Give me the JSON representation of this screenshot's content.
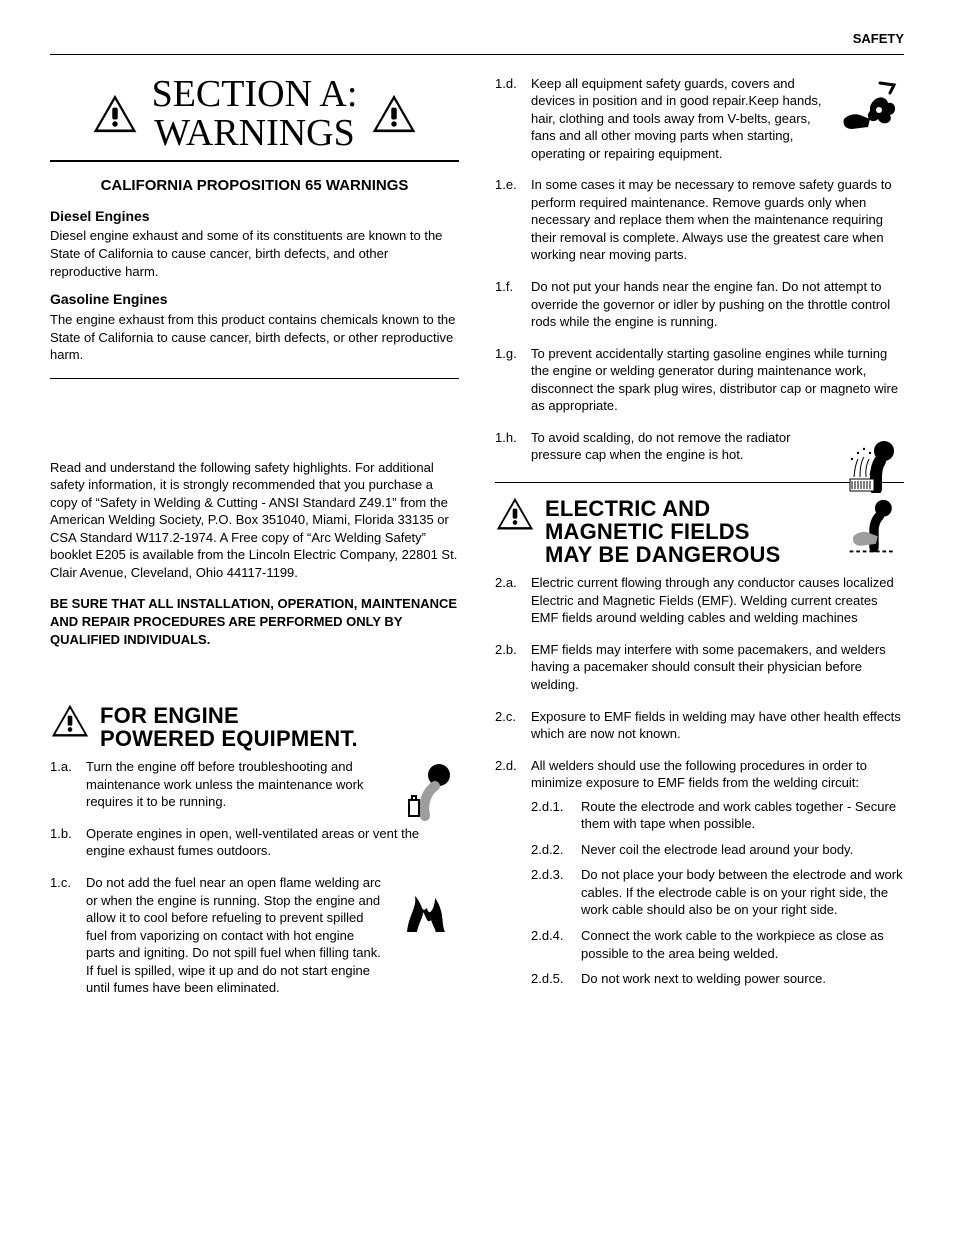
{
  "header": {
    "label": "SAFETY"
  },
  "section_title": {
    "line1": "SECTION A:",
    "line2": "WARNINGS"
  },
  "prop65": {
    "heading": "CALIFORNIA PROPOSITION 65 WARNINGS",
    "diesel_head": "Diesel Engines",
    "diesel_body": "Diesel engine exhaust and some of its constituents are known to the State of California to cause cancer, birth defects, and other reproductive harm.",
    "gas_head": "Gasoline Engines",
    "gas_body": "The engine exhaust from this product contains chemicals known to the State of California to cause cancer, birth defects, or other reproductive harm."
  },
  "intro_para": "Read and understand the following safety highlights. For additional safety information, it is strongly recommended that you purchase a copy of “Safety in Welding & Cutting - ANSI Standard Z49.1” from the American Welding Society, P.O. Box 351040, Miami, Florida 33135 or CSA Standard W117.2-1974. A Free copy of “Arc Welding Safety” booklet E205 is available from the Lincoln Electric Company, 22801 St. Clair Avenue, Cleveland, Ohio 44117-1199.",
  "bold_para": "BE SURE THAT ALL INSTALLATION, OPERATION, MAINTENANCE AND REPAIR PROCEDURES ARE PERFORMED ONLY BY QUALIFIED INDIVIDUALS.",
  "engine": {
    "heading": "FOR ENGINE POWERED EQUIPMENT.",
    "items": [
      {
        "n": "1.a.",
        "t": "Turn the engine off before troubleshooting and maintenance work unless the maintenance work requires it to be running.",
        "icon": "engine-off-icon"
      },
      {
        "n": "1.b.",
        "t": "Operate engines in open, well-ventilated areas or vent the engine exhaust fumes outdoors."
      },
      {
        "n": "1.c.",
        "t": "Do not add the fuel near an open flame welding arc or when the engine is running. Stop the engine and allow it to cool before refueling to prevent spilled fuel from vaporizing on contact with hot engine parts and igniting. Do not spill fuel when filling tank. If fuel is spilled, wipe it up and do not start engine until fumes have been eliminated.",
        "icon": "flame-icon"
      },
      {
        "n": "1.d.",
        "t": "Keep all equipment safety guards, covers and devices in position and in good repair.Keep hands, hair, clothing and tools away from V-belts, gears, fans and all other moving parts when starting, operating or repairing equipment.",
        "icon": "hand-fan-icon"
      },
      {
        "n": "1.e.",
        "t": "In some cases it may be necessary to remove safety guards to perform required maintenance. Remove guards only when necessary and replace them when the maintenance requiring their removal is complete. Always use the greatest care when working near moving parts."
      },
      {
        "n": "1.f.",
        "t": "Do not put your hands near the engine fan. Do not attempt to override the governor or idler by pushing on the throttle control rods while the engine is running."
      },
      {
        "n": "1.g.",
        "t": "To prevent accidentally starting gasoline engines while turning the engine or welding generator during maintenance work, disconnect the spark plug wires, distributor cap or magneto wire as appropriate."
      },
      {
        "n": "1.h.",
        "t": "To avoid scalding, do not remove the radiator pressure cap when the engine is hot.",
        "icon": "scalding-icon"
      }
    ]
  },
  "emf": {
    "heading": "ELECTRIC AND MAGNETIC FIELDS MAY BE DANGEROUS",
    "head_icon": "emf-hand-icon",
    "items": [
      {
        "n": "2.a.",
        "t": "Electric current flowing through any conductor causes localized Electric and Magnetic Fields (EMF). Welding current creates EMF fields around welding cables and welding machines"
      },
      {
        "n": "2.b.",
        "t": "EMF fields may interfere with some pacemakers, and welders having a pacemaker should consult their physician before welding."
      },
      {
        "n": "2.c.",
        "t": "Exposure to EMF fields in welding may have other health effects which are now not known."
      },
      {
        "n": "2.d.",
        "t": "All welders should use the following procedures in order to minimize exposure to EMF fields from the welding circuit:",
        "sub": [
          {
            "n": "2.d.1.",
            "t": "Route the electrode and work cables together - Secure them with tape when possible."
          },
          {
            "n": "2.d.2.",
            "t": "Never coil the electrode lead around your body."
          },
          {
            "n": "2.d.3.",
            "t": "Do not place your body between the electrode and work cables. If the electrode cable is on your right side, the work cable should also be on your right side."
          },
          {
            "n": "2.d.4.",
            "t": "Connect the work cable to the workpiece as close as possible to the area being welded."
          },
          {
            "n": "2.d.5.",
            "t": "Do not work next to welding power source."
          }
        ]
      }
    ]
  },
  "colors": {
    "text": "#000000",
    "bg": "#ffffff",
    "icon_grey": "#9d9d9d"
  }
}
